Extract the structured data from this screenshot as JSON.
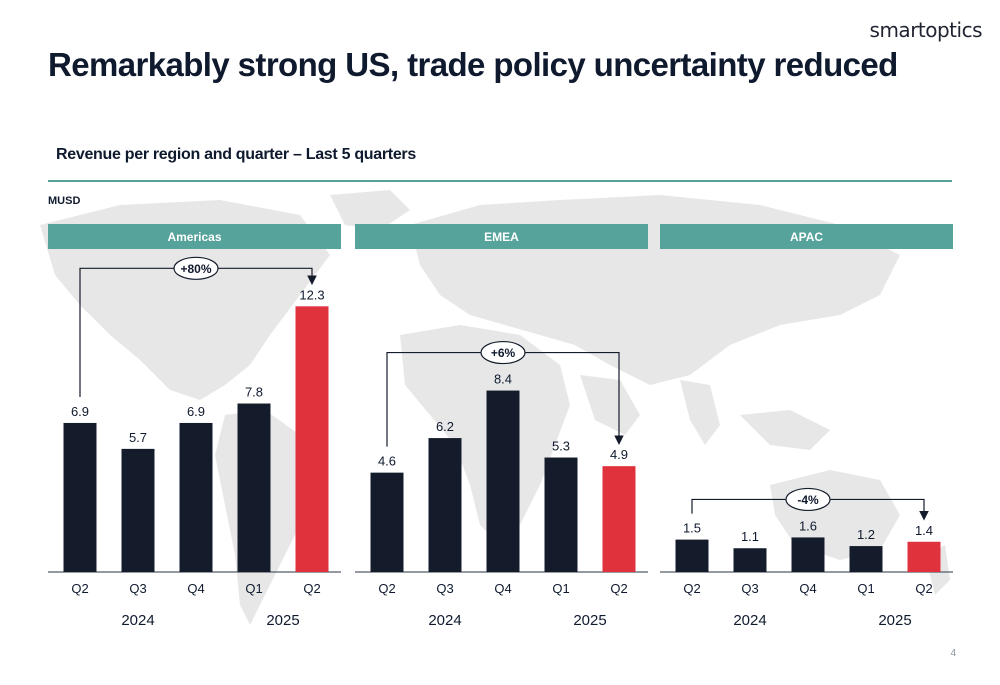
{
  "logo": "smartoptics",
  "title": "Remarkably strong US, trade policy uncertainty reduced",
  "subtitle": "Revenue per region and quarter – Last 5 quarters",
  "unit": "MUSD",
  "page_number": "4",
  "colors": {
    "header": "#56a39b",
    "bar": "#141c2c",
    "highlight": "#e0323d",
    "map": "#e6e6e6",
    "text": "#0f1a2e"
  },
  "chart_data": [
    {
      "type": "bar",
      "panel": "Americas",
      "categories": [
        "Q2",
        "Q3",
        "Q4",
        "Q1",
        "Q2"
      ],
      "years": [
        {
          "label": "2024",
          "span": [
            0,
            2
          ]
        },
        {
          "label": "2025",
          "span": [
            3,
            4
          ]
        }
      ],
      "values": [
        6.9,
        5.7,
        6.9,
        7.8,
        12.3
      ],
      "value_labels": [
        "6.9",
        "5.7",
        "6.9",
        "7.8",
        "12.3"
      ],
      "highlight_index": 4,
      "change": {
        "label": "+80%",
        "from_index": 0,
        "to_index": 4
      },
      "ylim": [
        0,
        14
      ]
    },
    {
      "type": "bar",
      "panel": "EMEA",
      "categories": [
        "Q2",
        "Q3",
        "Q4",
        "Q1",
        "Q2"
      ],
      "years": [
        {
          "label": "2024",
          "span": [
            0,
            2
          ]
        },
        {
          "label": "2025",
          "span": [
            3,
            4
          ]
        }
      ],
      "values": [
        4.6,
        6.2,
        8.4,
        5.3,
        4.9
      ],
      "value_labels": [
        "4.6",
        "6.2",
        "8.4",
        "5.3",
        "4.9"
      ],
      "highlight_index": 4,
      "change": {
        "label": "+6%",
        "from_index": 0,
        "to_index": 4
      },
      "ylim": [
        0,
        14
      ]
    },
    {
      "type": "bar",
      "panel": "APAC",
      "categories": [
        "Q2",
        "Q3",
        "Q4",
        "Q1",
        "Q2"
      ],
      "years": [
        {
          "label": "2024",
          "span": [
            0,
            2
          ]
        },
        {
          "label": "2025",
          "span": [
            3,
            4
          ]
        }
      ],
      "values": [
        1.5,
        1.1,
        1.6,
        1.2,
        1.4
      ],
      "value_labels": [
        "1.5",
        "1.1",
        "1.6",
        "1.2",
        "1.4"
      ],
      "highlight_index": 4,
      "change": {
        "label": "-4%",
        "from_index": 0,
        "to_index": 4
      },
      "ylim": [
        0,
        14
      ]
    }
  ]
}
